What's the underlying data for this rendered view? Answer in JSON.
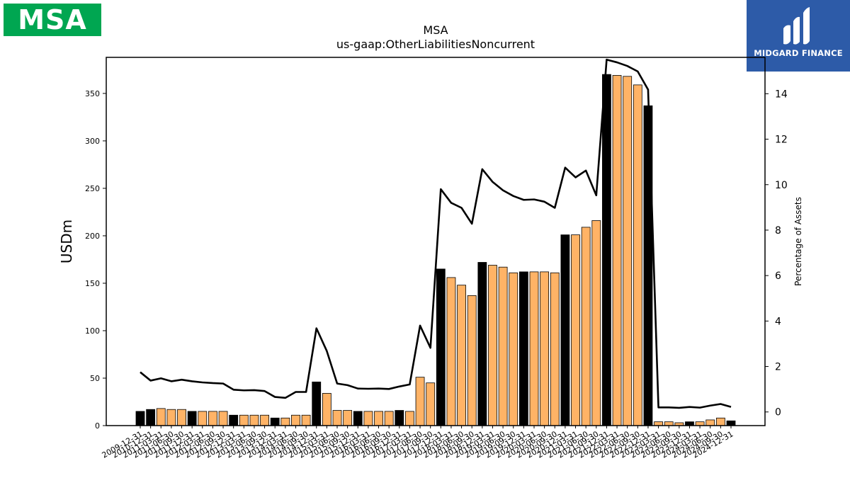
{
  "logos": {
    "left_text": "MSA",
    "right_text": "MIDGARD FINANCE",
    "colors": {
      "msa_green": "#00a651",
      "midgard_blue": "#2d5ba8"
    }
  },
  "chart_data": {
    "type": "bar",
    "title": "MSA",
    "subtitle": "us-gaap:OtherLiabilitiesNoncurrent",
    "ylabel": "USDm",
    "y2label": "Percentage of Assets",
    "ylim": [
      0,
      388
    ],
    "y2lim": [
      -0.6,
      15.6
    ],
    "yticks": [
      0,
      50,
      100,
      150,
      200,
      250,
      300,
      350
    ],
    "y2ticks": [
      0,
      2,
      4,
      6,
      8,
      10,
      12,
      14
    ],
    "grid": false,
    "categories": [
      "2009-12-31",
      "2010-12-31",
      "2011-03-31",
      "2011-06-30",
      "2011-09-30",
      "2011-12-31",
      "2012-03-31",
      "2012-06-30",
      "2012-09-30",
      "2012-12-31",
      "2013-03-31",
      "2013-06-30",
      "2013-09-30",
      "2013-12-31",
      "2014-03-31",
      "2014-06-30",
      "2014-09-30",
      "2014-12-31",
      "2015-03-31",
      "2015-06-30",
      "2015-09-30",
      "2015-12-31",
      "2016-03-31",
      "2016-06-30",
      "2016-09-30",
      "2016-12-31",
      "2017-03-31",
      "2017-06-30",
      "2017-09-30",
      "2017-12-31",
      "2018-03-31",
      "2018-06-30",
      "2018-09-30",
      "2018-12-31",
      "2019-03-31",
      "2019-06-30",
      "2019-09-30",
      "2019-12-31",
      "2020-03-31",
      "2020-06-30",
      "2020-09-30",
      "2020-12-31",
      "2021-03-31",
      "2021-06-30",
      "2021-09-30",
      "2021-12-31",
      "2022-03-31",
      "2022-06-30",
      "2022-09-30",
      "2022-12-31",
      "2023-03-31",
      "2023-06-30",
      "2023-09-30",
      "2023-12-31",
      "2024-03-31",
      "2024-06-30",
      "2024-09-30",
      "2024-12-31"
    ],
    "tick_labels": [
      "2009-12-31",
      "2010-12-31",
      "2011-03-31",
      "2011-06-30",
      "2011-09-30",
      "2011-12-31",
      "2012-03-31",
      "2012-06-30",
      "2012-09-30",
      "2012-12-31",
      "2013-03-31",
      "2013-06-30",
      "2013-09-30",
      "2013-12-31",
      "2014-03-31",
      "2014-06-30",
      "2014-09-30",
      "2014-12-31",
      "2015-03-31",
      "2015-06-30",
      "2015-09-30",
      "2015-12-31",
      "2016-03-31",
      "2016-06-30",
      "2016-09-30",
      "2016-12-31",
      "2017-03-31",
      "2017-06-30",
      "2017-09-30",
      "2017-12-31",
      "2018-03-31",
      "2018-06-30",
      "2018-09-30",
      "2018-12-31",
      "2019-03-31",
      "2019-06-30",
      "2019-09-30",
      "2019-12-31",
      "2020-03-31",
      "2020-06-30",
      "2020-09-30",
      "2020-12-31",
      "2021-03-31",
      "2021-06-30",
      "2021-09-30",
      "2021-12-31",
      "2022-03-31",
      "2022-06-30",
      "2022-09-30",
      "2022-12-31",
      "2023-03-31",
      "2023-06-30",
      "2023-09-30",
      "2023-12-31",
      "2024-03-31",
      "2024-06-30",
      "2024-09-30",
      "2024-12-31"
    ],
    "bar_series": {
      "values": [
        15,
        17,
        18,
        17,
        17,
        15,
        15,
        15,
        15,
        11,
        11,
        11,
        11,
        8,
        8,
        11,
        11,
        46,
        34,
        16,
        16,
        15,
        15,
        15,
        15,
        16,
        15,
        51,
        45,
        165,
        156,
        148,
        137,
        172,
        169,
        167,
        161,
        162,
        162,
        162,
        161,
        201,
        201,
        209,
        216,
        370,
        369,
        368,
        359,
        337,
        4,
        4,
        3,
        4,
        4,
        6,
        8,
        5
      ],
      "annual_color": "#000000",
      "quarterly_color": "#ffb366"
    },
    "line_series": {
      "values": [
        1.75,
        1.38,
        1.48,
        1.35,
        1.42,
        1.35,
        1.3,
        1.27,
        1.25,
        0.98,
        0.95,
        0.96,
        0.92,
        0.66,
        0.62,
        0.88,
        0.88,
        3.68,
        2.68,
        1.25,
        1.18,
        1.03,
        1.02,
        1.03,
        1.01,
        1.12,
        1.21,
        3.8,
        2.82,
        9.8,
        9.2,
        8.98,
        8.28,
        10.68,
        10.12,
        9.75,
        9.5,
        9.33,
        9.35,
        9.25,
        8.98,
        10.75,
        10.32,
        10.62,
        9.53,
        15.5,
        15.38,
        15.22,
        14.98,
        14.18,
        0.2,
        0.2,
        0.18,
        0.22,
        0.19,
        0.28,
        0.35,
        0.22
      ],
      "color": "#000000"
    }
  }
}
